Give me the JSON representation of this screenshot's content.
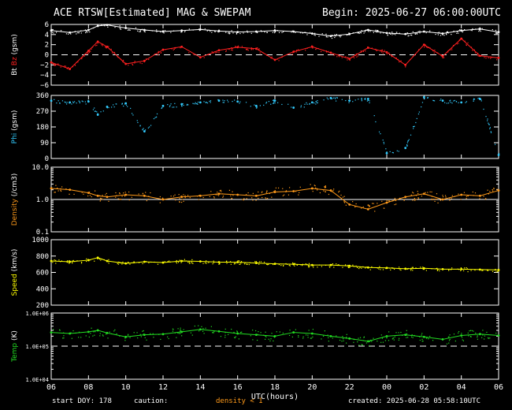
{
  "header": {
    "title": "ACE RTSW[Estimated] MAG & SWEPAM",
    "begin": "Begin: 2025-06-27 06:00:00UTC"
  },
  "footer": {
    "start_doy": "start DOY: 178",
    "caution": "caution:",
    "density_note": "density < 1",
    "created": "created: 2025-06-28 05:58:10UTC"
  },
  "colors": {
    "bt": "#ffffff",
    "bz": "#ff2020",
    "phi": "#33ccff",
    "density": "#ff9a1a",
    "speed": "#ffff00",
    "temp": "#22dd22",
    "frame": "#ffffff",
    "background": "#000000"
  },
  "chart_data": [
    {
      "type": "line",
      "ylabel_parts": [
        {
          "text": "Bt",
          "color": "#ffffff"
        },
        {
          "text": "Bz",
          "color": "#ff2020"
        },
        {
          "text": "(gsm)",
          "color": "#ffffff"
        }
      ],
      "ylim": [
        -6,
        6
      ],
      "yticks": [
        6,
        4,
        2,
        0,
        -2,
        -4,
        -6
      ],
      "ytick_labels": [
        "6",
        "4",
        "2",
        "0",
        "−2",
        "−4",
        "−6"
      ],
      "dashed_ref": 0,
      "x": [
        0,
        1,
        2,
        2.5,
        3,
        4,
        5,
        6,
        7,
        8,
        9,
        10,
        11,
        12,
        13,
        14,
        15,
        16,
        17,
        18,
        19,
        20,
        21,
        22,
        23,
        24
      ],
      "series": [
        {
          "key": "Bt",
          "color": "#ffffff",
          "values": [
            4.8,
            4.4,
            4.9,
            5.7,
            5.9,
            5.3,
            4.9,
            4.6,
            4.8,
            5.0,
            4.7,
            4.5,
            4.6,
            4.8,
            4.6,
            4.2,
            3.7,
            4.1,
            4.9,
            4.3,
            4.1,
            4.6,
            4.2,
            4.8,
            5.1,
            4.5
          ]
        },
        {
          "key": "Bz",
          "color": "#ff2020",
          "values": [
            -1.5,
            -2.8,
            0.8,
            2.6,
            1.6,
            -1.8,
            -1.2,
            1.0,
            1.6,
            -0.5,
            0.9,
            1.5,
            1.2,
            -1.0,
            0.6,
            1.6,
            0.4,
            -0.8,
            1.4,
            0.5,
            -2.0,
            2.0,
            -0.3,
            3.2,
            -0.2,
            -0.6
          ]
        }
      ]
    },
    {
      "type": "scatter",
      "ylabel_parts": [
        {
          "text": "Phi",
          "color": "#33ccff"
        },
        {
          "text": "(gsm)",
          "color": "#ffffff"
        }
      ],
      "ylim": [
        0,
        360
      ],
      "yticks": [
        360,
        270,
        180,
        90,
        0
      ],
      "ytick_labels": [
        "360",
        "270",
        "180",
        "90",
        "0"
      ],
      "x": [
        0,
        1,
        2,
        2.5,
        3,
        4,
        5,
        6,
        7,
        8,
        9,
        10,
        11,
        12,
        13,
        14,
        15,
        16,
        17,
        18,
        19,
        20,
        21,
        22,
        23,
        24
      ],
      "series": [
        {
          "key": "Phi",
          "color": "#33ccff",
          "values": [
            330,
            320,
            325,
            250,
            295,
            315,
            155,
            300,
            310,
            320,
            330,
            325,
            300,
            330,
            290,
            320,
            345,
            330,
            340,
            30,
            60,
            350,
            330,
            320,
            340,
            20
          ]
        }
      ]
    },
    {
      "type": "line",
      "ylabel_parts": [
        {
          "text": "Density",
          "color": "#ff9a1a"
        },
        {
          "text": "(/cm3)",
          "color": "#ffffff"
        }
      ],
      "yscale": "log",
      "ylim": [
        0.1,
        10
      ],
      "yticks": [
        10,
        1,
        0.1
      ],
      "ytick_labels": [
        "10.0",
        "1.0",
        "0.1"
      ],
      "solid_ref": 1,
      "x": [
        0,
        1,
        2,
        2.5,
        3,
        4,
        5,
        6,
        7,
        8,
        9,
        10,
        11,
        12,
        13,
        14,
        15,
        16,
        17,
        18,
        19,
        20,
        21,
        22,
        23,
        24
      ],
      "series": [
        {
          "key": "Density",
          "color": "#ff9a1a",
          "values": [
            2.2,
            2.0,
            1.6,
            1.3,
            1.2,
            1.4,
            1.3,
            1.0,
            1.2,
            1.3,
            1.5,
            1.4,
            1.3,
            1.7,
            1.8,
            2.2,
            1.9,
            0.7,
            0.5,
            0.8,
            1.2,
            1.5,
            1.0,
            1.4,
            1.3,
            1.9
          ]
        }
      ]
    },
    {
      "type": "line",
      "ylabel_parts": [
        {
          "text": "Speed",
          "color": "#ffff00"
        },
        {
          "text": "(km/s)",
          "color": "#ffffff"
        }
      ],
      "ylim": [
        200,
        1000
      ],
      "yticks": [
        1000,
        800,
        600,
        400,
        200
      ],
      "ytick_labels": [
        "1000",
        "800",
        "600",
        "400",
        "200"
      ],
      "x": [
        0,
        1,
        2,
        2.5,
        3,
        4,
        5,
        6,
        7,
        8,
        9,
        10,
        11,
        12,
        13,
        14,
        15,
        16,
        17,
        18,
        19,
        20,
        21,
        22,
        23,
        24
      ],
      "series": [
        {
          "key": "Speed",
          "color": "#ffff00",
          "values": [
            740,
            730,
            750,
            780,
            740,
            710,
            730,
            720,
            740,
            735,
            725,
            725,
            715,
            705,
            700,
            690,
            690,
            680,
            660,
            655,
            645,
            650,
            640,
            640,
            635,
            630
          ]
        }
      ]
    },
    {
      "type": "line",
      "ylabel_parts": [
        {
          "text": "Temp",
          "color": "#22dd22"
        },
        {
          "text": "(K)",
          "color": "#ffffff"
        }
      ],
      "yscale": "log",
      "ylim": [
        10000,
        1000000
      ],
      "yticks": [
        1000000,
        100000,
        10000
      ],
      "ytick_labels": [
        "1.0E+06",
        "1.0E+05",
        "1.0E+04"
      ],
      "dashed_ref": 100000,
      "x": [
        0,
        1,
        2,
        2.5,
        3,
        4,
        5,
        6,
        7,
        8,
        9,
        10,
        11,
        12,
        13,
        14,
        15,
        16,
        17,
        18,
        19,
        20,
        21,
        22,
        23,
        24
      ],
      "series": [
        {
          "key": "Temp",
          "color": "#22dd22",
          "values": [
            260000,
            240000,
            270000,
            300000,
            250000,
            190000,
            220000,
            230000,
            270000,
            320000,
            280000,
            240000,
            220000,
            200000,
            260000,
            240000,
            200000,
            170000,
            140000,
            200000,
            220000,
            190000,
            160000,
            210000,
            230000,
            210000
          ]
        }
      ]
    }
  ],
  "xaxis": {
    "label": "UTC(hours)",
    "xlim": [
      0,
      24
    ],
    "ticks": [
      0,
      2,
      4,
      6,
      8,
      10,
      12,
      14,
      16,
      18,
      20,
      22,
      24
    ],
    "tick_labels": [
      "06",
      "08",
      "10",
      "12",
      "14",
      "16",
      "18",
      "20",
      "22",
      "00",
      "02",
      "04",
      "06"
    ]
  }
}
